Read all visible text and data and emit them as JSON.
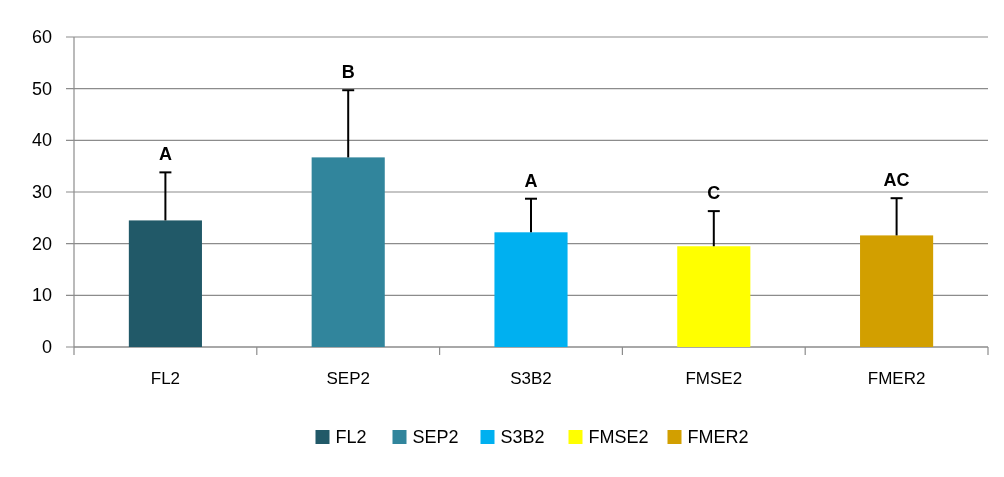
{
  "chart_data": {
    "type": "bar",
    "categories": [
      "FL2",
      "SEP2",
      "S3B2",
      "FMSE2",
      "FMER2"
    ],
    "series": [
      {
        "name": "FL2",
        "color": "#215968",
        "values": [
          24.5,
          null,
          null,
          null,
          null
        ],
        "errors": [
          [
            24.5,
            33.8
          ],
          null,
          null,
          null,
          null
        ]
      },
      {
        "name": "SEP2",
        "color": "#31859c",
        "values": [
          null,
          36.7,
          null,
          null,
          null
        ],
        "errors": [
          null,
          [
            36.7,
            49.7
          ],
          null,
          null,
          null
        ]
      },
      {
        "name": "S3B2",
        "color": "#00b0f0",
        "values": [
          null,
          null,
          22.2,
          null,
          null
        ],
        "errors": [
          null,
          null,
          [
            22.2,
            28.7
          ],
          null,
          null
        ]
      },
      {
        "name": "FMSE2",
        "color": "#ffff00",
        "values": [
          null,
          null,
          null,
          19.5,
          null
        ],
        "errors": [
          null,
          null,
          null,
          [
            19.5,
            26.3
          ],
          null
        ]
      },
      {
        "name": "FMER2",
        "color": "#d29f00",
        "values": [
          null,
          null,
          null,
          null,
          21.6
        ],
        "errors": [
          null,
          null,
          null,
          null,
          [
            21.6,
            28.8
          ]
        ]
      }
    ],
    "ylim": [
      0,
      60
    ],
    "yticks": [
      0,
      10,
      20,
      30,
      40,
      50,
      60
    ],
    "grid": "y",
    "legend": "bottom",
    "annotations": [
      "A",
      "B",
      "A",
      "C",
      "AC"
    ]
  }
}
